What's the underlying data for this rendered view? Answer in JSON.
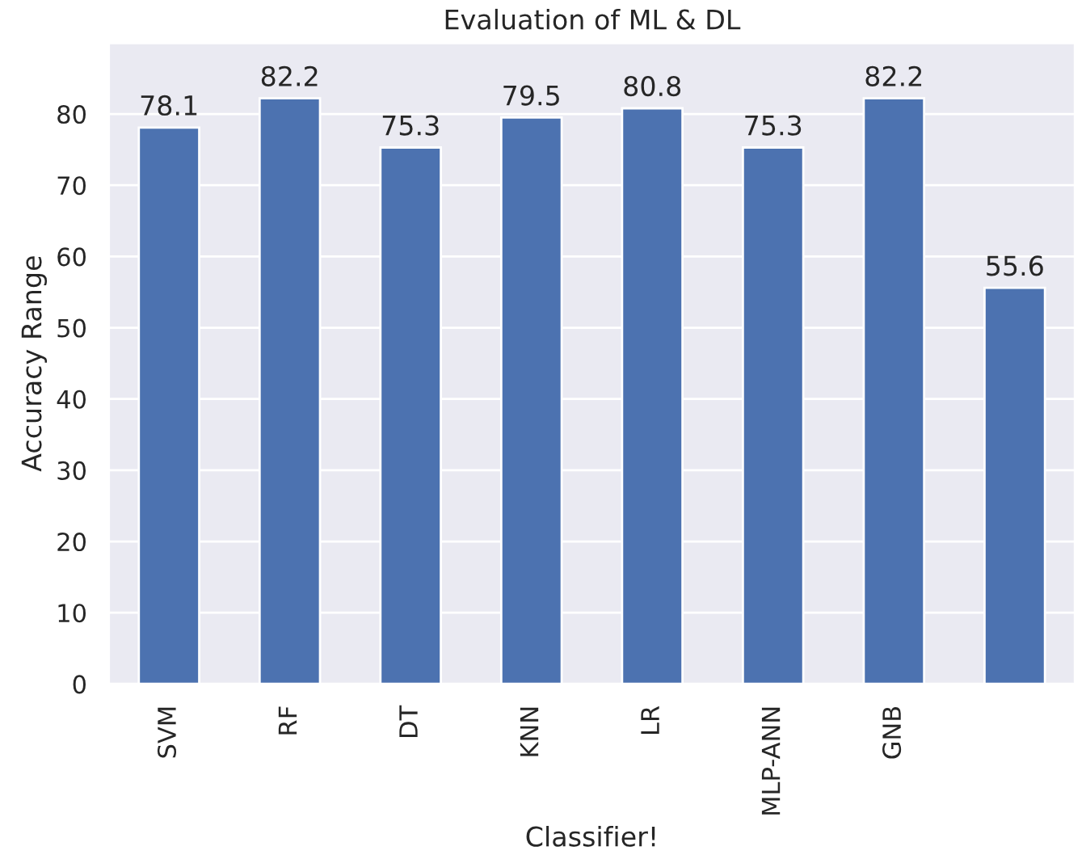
{
  "chart_data": {
    "type": "bar",
    "title": "Evaluation of ML & DL",
    "xlabel": "Classifier!",
    "ylabel": "Accuracy Range",
    "categories": [
      "SVM",
      "RF",
      "DT",
      "KNN",
      "LR",
      "MLP-ANN",
      "GNB",
      null
    ],
    "values": [
      78.1,
      82.2,
      75.3,
      79.5,
      80.8,
      75.3,
      82.2,
      55.6
    ],
    "color": "#4c72b0",
    "ylim": [
      0,
      90
    ],
    "yticks": [
      0,
      10,
      20,
      30,
      40,
      50,
      60,
      70,
      80
    ],
    "grid": "y",
    "data_labels": true
  }
}
